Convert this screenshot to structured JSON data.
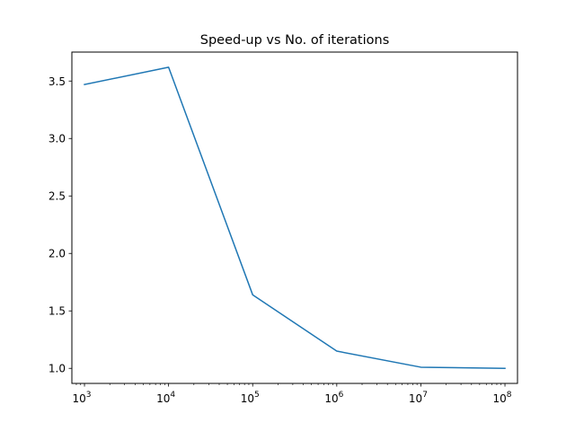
{
  "chart_data": {
    "type": "line",
    "title": "Speed-up vs No. of iterations",
    "xlabel": "",
    "ylabel": "",
    "xscale": "log",
    "xlim": [
      708,
      141000000
    ],
    "ylim": [
      0.869,
      3.752
    ],
    "grid": false,
    "legend": "none",
    "x": [
      1000,
      10000,
      100000,
      1000000,
      10000000,
      100000000
    ],
    "series": [
      {
        "color": "#1f77b4",
        "values": [
          3.47,
          3.62,
          1.64,
          1.15,
          1.01,
          1.0
        ]
      }
    ],
    "xticks": [
      {
        "value": 1000,
        "base": "10",
        "exp": "3"
      },
      {
        "value": 10000,
        "base": "10",
        "exp": "4"
      },
      {
        "value": 100000,
        "base": "10",
        "exp": "5"
      },
      {
        "value": 1000000,
        "base": "10",
        "exp": "6"
      },
      {
        "value": 10000000,
        "base": "10",
        "exp": "7"
      },
      {
        "value": 100000000,
        "base": "10",
        "exp": "8"
      }
    ],
    "yticks": [
      {
        "value": 1.0,
        "label": "1.0"
      },
      {
        "value": 1.5,
        "label": "1.5"
      },
      {
        "value": 2.0,
        "label": "2.0"
      },
      {
        "value": 2.5,
        "label": "2.5"
      },
      {
        "value": 3.0,
        "label": "3.0"
      },
      {
        "value": 3.5,
        "label": "3.5"
      }
    ]
  }
}
